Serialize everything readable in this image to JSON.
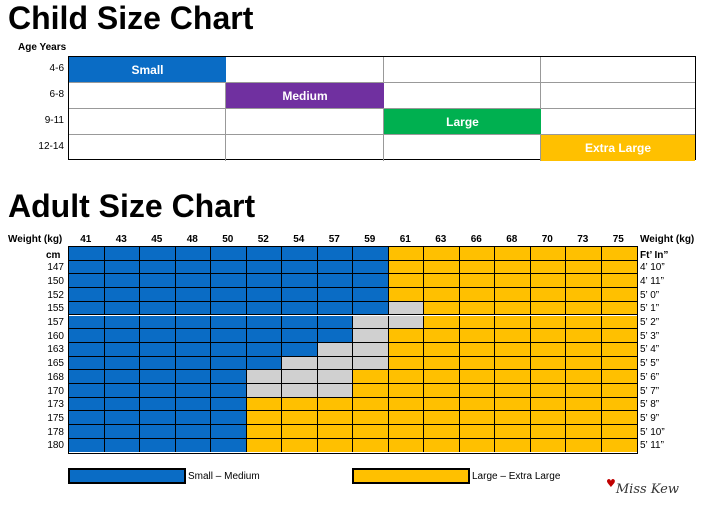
{
  "child_chart": {
    "title": "Child Size Chart",
    "row_header": "Age Years",
    "rows": [
      "4-6",
      "6-8",
      "9-11",
      "12-14"
    ],
    "sizes": [
      {
        "label": "Small",
        "row": 0,
        "column": 0,
        "color": "#0a6cc5"
      },
      {
        "label": "Medium",
        "row": 1,
        "column": 1,
        "color": "#7030a0"
      },
      {
        "label": "Large",
        "row": 2,
        "column": 2,
        "color": "#00b050"
      },
      {
        "label": "Extra Large",
        "row": 3,
        "column": 3,
        "color": "#ffc000"
      }
    ]
  },
  "adult_chart": {
    "title": "Adult Size Chart",
    "weight_label_left": "Weight (kg)",
    "weight_label_right": "Weight (kg)",
    "cm_label": "cm",
    "ft_in_label": "Ft’ In”",
    "weights_kg": [
      "41",
      "43",
      "45",
      "48",
      "50",
      "52",
      "54",
      "57",
      "59",
      "61",
      "63",
      "66",
      "68",
      "70",
      "73",
      "75"
    ],
    "heights_cm": [
      "147",
      "150",
      "152",
      "155",
      "157",
      "160",
      "163",
      "165",
      "168",
      "170",
      "173",
      "175",
      "178",
      "180"
    ],
    "heights_ft_in": [
      "4’ 10”",
      "4’ 11”",
      "5’ 0”",
      "5’ 1”",
      "5’ 2”",
      "5’ 3”",
      "5’ 4”",
      "5’ 5”",
      "5’ 6”",
      "5’ 7”",
      "5’ 8”",
      "5’ 9”",
      "5’ 10”",
      "5’ 11”"
    ],
    "grey_first_column_per_row": [
      9,
      9,
      9,
      9,
      8,
      8,
      7,
      6,
      5,
      5,
      5,
      5,
      5,
      5
    ],
    "large_first_column_per_row": [
      9,
      9,
      9,
      10,
      10,
      9,
      9,
      9,
      8,
      8,
      5,
      5,
      5,
      5
    ],
    "header_row_grey_first_column": 9,
    "header_row_large_first_column": 9,
    "colors": {
      "small_medium": "#0a6cc5",
      "large_xl": "#ffc000",
      "grey": "#d0d0d0"
    }
  },
  "chart_data": [
    {
      "type": "table",
      "title": "Child Size Chart",
      "row_label": "Age Years",
      "rows": [
        "4-6",
        "6-8",
        "9-11",
        "12-14"
      ],
      "values": [
        "Small",
        "Medium",
        "Large",
        "Extra Large"
      ]
    },
    {
      "type": "heatmap",
      "title": "Adult Size Chart",
      "xlabel": "Weight (kg)",
      "ylabel": "cm / Ft’ In”",
      "x": [
        41,
        43,
        45,
        48,
        50,
        52,
        54,
        57,
        59,
        61,
        63,
        66,
        68,
        70,
        73,
        75
      ],
      "y": [
        147,
        150,
        152,
        155,
        157,
        160,
        163,
        165,
        168,
        170,
        173,
        175,
        178,
        180
      ],
      "categories": [
        "Small – Medium",
        "Large – Extra Large"
      ]
    }
  ],
  "legend": {
    "small_medium": "Small – Medium",
    "large_xl": "Large – Extra Large"
  },
  "brand": "Miss Kew"
}
